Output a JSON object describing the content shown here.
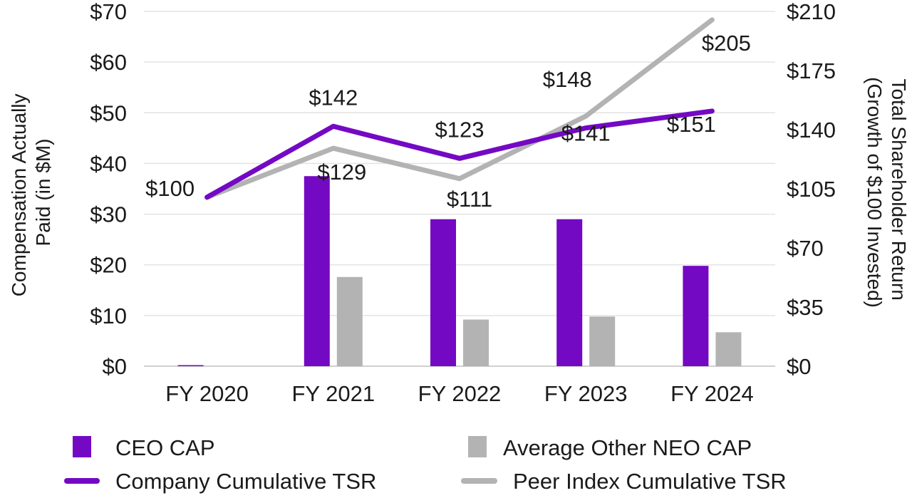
{
  "chart_data": {
    "type": "bar",
    "categories": [
      "FY 2020",
      "FY 2021",
      "FY 2022",
      "FY 2023",
      "FY 2024"
    ],
    "bar_series": [
      {
        "name": "CEO CAP",
        "color": "#7409C4",
        "values": [
          0.1,
          37.5,
          29.0,
          29.0,
          19.8
        ]
      },
      {
        "name": "Average Other NEO CAP",
        "color": "#B3B3B3",
        "values": [
          0.0,
          17.6,
          9.2,
          9.8,
          6.7
        ]
      }
    ],
    "line_series": [
      {
        "name": "Company Cumulative TSR",
        "color": "#7409C4",
        "values": [
          100,
          142,
          123,
          141,
          151
        ],
        "labels": [
          "$100",
          "$142",
          "$123",
          "$141",
          "$151"
        ]
      },
      {
        "name": "Peer Index Cumulative TSR",
        "color": "#B3B3B3",
        "values": [
          100,
          129,
          111,
          148,
          205
        ],
        "labels": [
          "",
          "$129",
          "$111",
          "$148",
          "$205"
        ]
      }
    ],
    "y_left": {
      "label_lines": [
        "Compensation Actually",
        "Paid (in $M)"
      ],
      "ylim": [
        0,
        70
      ],
      "ticks": [
        0,
        10,
        20,
        30,
        40,
        50,
        60,
        70
      ],
      "tick_labels": [
        "$0",
        "$10",
        "$20",
        "$30",
        "$40",
        "$50",
        "$60",
        "$70"
      ]
    },
    "y_right": {
      "label_lines": [
        "Total Shareholder Return",
        "(Growth of $100 Invested)"
      ],
      "ylim": [
        0,
        210
      ],
      "ticks": [
        0,
        35,
        70,
        105,
        140,
        175,
        210
      ],
      "tick_labels": [
        "$0",
        "$35",
        "$70",
        "$105",
        "$140",
        "$175",
        "$210"
      ]
    },
    "grid": true,
    "legend_position": "bottom"
  }
}
